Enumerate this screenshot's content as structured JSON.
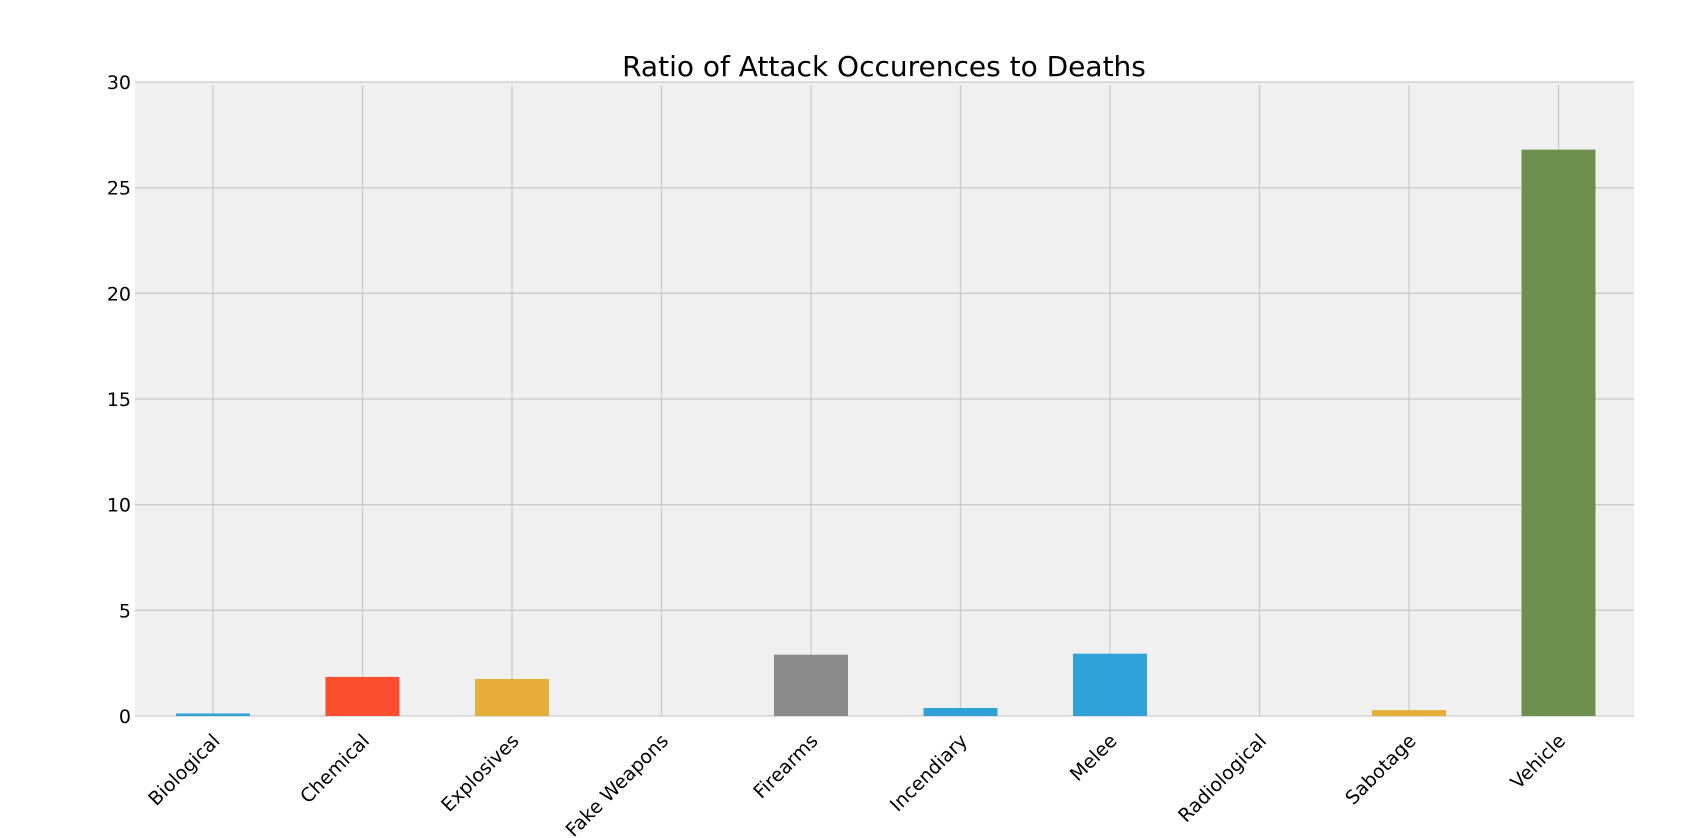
{
  "chart_data": {
    "type": "bar",
    "title": "Ratio of Attack Occurences to Deaths",
    "xlabel": "",
    "ylabel": "",
    "categories": [
      "Biological",
      "Chemical",
      "Explosives",
      "Fake Weapons",
      "Firearms",
      "Incendiary",
      "Melee",
      "Radiological",
      "Sabotage",
      "Vehicle"
    ],
    "values": [
      0.12,
      1.85,
      1.75,
      0,
      2.9,
      0.38,
      2.95,
      0,
      0.28,
      26.8
    ],
    "bar_colors": [
      "#30a2da",
      "#fc4f30",
      "#e5ae38",
      "#6d904f",
      "#8b8b8b",
      "#30a2da",
      "#30a2da",
      "#fc4f30",
      "#e5ae38",
      "#6d904f"
    ],
    "ylim": [
      0,
      30
    ],
    "yticks": [
      0,
      5,
      10,
      15,
      20,
      25,
      30
    ],
    "grid": true,
    "legend": "none",
    "background_color": "#f0f0f0"
  }
}
